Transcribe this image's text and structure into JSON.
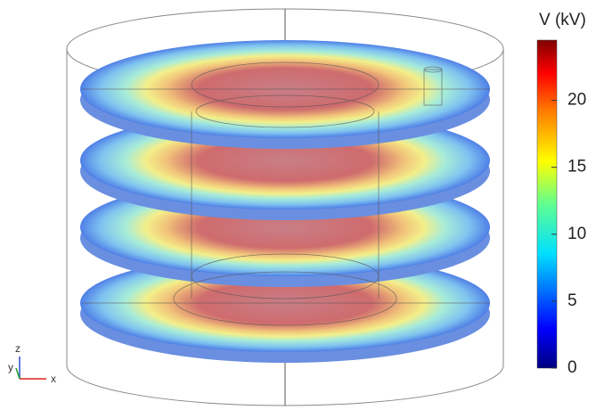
{
  "colorbar": {
    "title": "V (kV)",
    "range": [
      0,
      24.5
    ],
    "ticks": [
      0,
      5,
      10,
      15,
      20
    ]
  },
  "triad": {
    "z": "z",
    "y": "y",
    "x": "x"
  }
}
